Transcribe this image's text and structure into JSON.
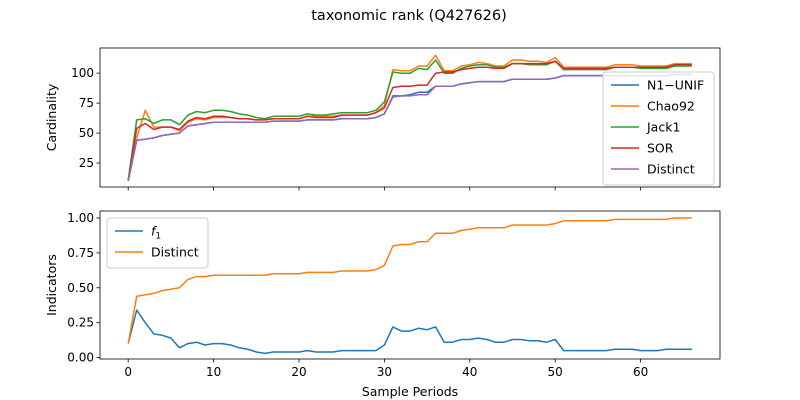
{
  "figure": {
    "title": "taxonomic rank (Q427626)"
  },
  "colors": {
    "blue": "#1f77b4",
    "orange": "#ff7f0e",
    "green": "#2ca02c",
    "red": "#d62728",
    "purple": "#9467bd"
  },
  "chart_data": [
    {
      "type": "line",
      "ylabel": "Cardinality",
      "xlim": [
        -3.3,
        69.3
      ],
      "ylim": [
        5,
        121
      ],
      "yticks": [
        25,
        50,
        75,
        100
      ],
      "xticks": [
        0,
        10,
        20,
        30,
        40,
        50,
        60
      ],
      "x_ticklabels_shown": false,
      "grid": false,
      "legend": "right",
      "x": [
        0,
        1,
        2,
        3,
        4,
        5,
        6,
        7,
        8,
        9,
        10,
        11,
        12,
        13,
        14,
        15,
        16,
        17,
        18,
        19,
        20,
        21,
        22,
        23,
        24,
        25,
        26,
        27,
        28,
        29,
        30,
        31,
        32,
        33,
        34,
        35,
        36,
        37,
        38,
        39,
        40,
        41,
        42,
        43,
        44,
        45,
        46,
        47,
        48,
        49,
        50,
        51,
        52,
        53,
        54,
        55,
        56,
        57,
        58,
        59,
        60,
        61,
        62,
        63,
        64,
        65,
        66
      ],
      "series": [
        {
          "name": "N1−UNIF",
          "color": "#1f77b4",
          "values": [
            10,
            44,
            45,
            46,
            48,
            49,
            50,
            56,
            57,
            58,
            59,
            59,
            59,
            59,
            59,
            59,
            59,
            60,
            60,
            60,
            60,
            61,
            61,
            61,
            61,
            62,
            62,
            62,
            62,
            63,
            66,
            81,
            81,
            82,
            84,
            84,
            89,
            89,
            89,
            91,
            92,
            93,
            93,
            93,
            93,
            95,
            95,
            95,
            95,
            95,
            96,
            98,
            98,
            98,
            98,
            98,
            98,
            98,
            98,
            98,
            98,
            98,
            98,
            98,
            99,
            99,
            99
          ]
        },
        {
          "name": "Chao92",
          "color": "#ff7f0e",
          "values": [
            10,
            46,
            69,
            55,
            55,
            55,
            52,
            59,
            62,
            61,
            63,
            63,
            63,
            62,
            62,
            61,
            61,
            62,
            62,
            62,
            62,
            64,
            64,
            64,
            64,
            65,
            65,
            65,
            65,
            67,
            73,
            103,
            102,
            102,
            106,
            106,
            115,
            102,
            102,
            106,
            107,
            109,
            108,
            106,
            106,
            111,
            111,
            110,
            110,
            109,
            113,
            105,
            105,
            105,
            105,
            105,
            105,
            107,
            107,
            107,
            106,
            106,
            106,
            106,
            108,
            108,
            108
          ]
        },
        {
          "name": "Jack1",
          "color": "#2ca02c",
          "values": [
            11,
            61,
            62,
            58,
            61,
            61,
            57,
            65,
            68,
            67,
            69,
            69,
            68,
            66,
            65,
            63,
            62,
            64,
            64,
            64,
            64,
            66,
            65,
            65,
            66,
            67,
            67,
            67,
            67,
            69,
            76,
            101,
            100,
            100,
            104,
            103,
            111,
            100,
            100,
            104,
            106,
            107,
            107,
            105,
            105,
            108,
            108,
            107,
            107,
            107,
            110,
            103,
            103,
            103,
            103,
            103,
            103,
            105,
            105,
            105,
            104,
            104,
            104,
            104,
            106,
            106,
            106
          ]
        },
        {
          "name": "SOR",
          "color": "#d62728",
          "values": [
            10,
            54,
            58,
            53,
            55,
            55,
            53,
            60,
            63,
            62,
            64,
            64,
            63,
            62,
            62,
            61,
            61,
            62,
            62,
            62,
            62,
            64,
            63,
            63,
            63,
            65,
            65,
            65,
            65,
            67,
            71,
            88,
            89,
            89,
            90,
            90,
            100,
            101,
            101,
            103,
            104,
            105,
            105,
            104,
            104,
            108,
            108,
            108,
            108,
            108,
            110,
            104,
            104,
            104,
            104,
            104,
            104,
            105,
            105,
            105,
            105,
            105,
            105,
            105,
            107,
            107,
            107
          ]
        },
        {
          "name": "Distinct",
          "color": "#9467bd",
          "values": [
            10,
            44,
            45,
            46,
            48,
            49,
            50,
            56,
            57,
            58,
            59,
            59,
            59,
            59,
            59,
            59,
            59,
            60,
            60,
            60,
            60,
            61,
            61,
            61,
            61,
            62,
            62,
            62,
            62,
            63,
            66,
            80,
            81,
            81,
            82,
            82,
            89,
            89,
            89,
            91,
            92,
            93,
            93,
            93,
            93,
            95,
            95,
            95,
            95,
            95,
            96,
            98,
            98,
            98,
            98,
            98,
            98,
            98,
            98,
            98,
            98,
            98,
            98,
            98,
            99,
            99,
            99
          ]
        }
      ]
    },
    {
      "type": "line",
      "xlabel": "Sample Periods",
      "ylabel": "Indicators",
      "xlim": [
        -3.3,
        69.3
      ],
      "ylim": [
        -0.01,
        1.05
      ],
      "yticks": [
        0.0,
        0.25,
        0.5,
        0.75,
        1.0
      ],
      "ytick_labels": [
        "0.00",
        "0.25",
        "0.50",
        "0.75",
        "1.00"
      ],
      "xticks": [
        0,
        10,
        20,
        30,
        40,
        50,
        60
      ],
      "xtick_labels": [
        "0",
        "10",
        "20",
        "30",
        "40",
        "50",
        "60"
      ],
      "grid": false,
      "legend": "top-left",
      "x": [
        0,
        1,
        2,
        3,
        4,
        5,
        6,
        7,
        8,
        9,
        10,
        11,
        12,
        13,
        14,
        15,
        16,
        17,
        18,
        19,
        20,
        21,
        22,
        23,
        24,
        25,
        26,
        27,
        28,
        29,
        30,
        31,
        32,
        33,
        34,
        35,
        36,
        37,
        38,
        39,
        40,
        41,
        42,
        43,
        44,
        45,
        46,
        47,
        48,
        49,
        50,
        51,
        52,
        53,
        54,
        55,
        56,
        57,
        58,
        59,
        60,
        61,
        62,
        63,
        64,
        65,
        66
      ],
      "series": [
        {
          "name": "f",
          "name_subscript": "1",
          "color": "#1f77b4",
          "values": [
            0.1,
            0.34,
            0.25,
            0.17,
            0.16,
            0.14,
            0.07,
            0.1,
            0.11,
            0.09,
            0.1,
            0.1,
            0.09,
            0.07,
            0.06,
            0.04,
            0.03,
            0.04,
            0.04,
            0.04,
            0.04,
            0.05,
            0.04,
            0.04,
            0.04,
            0.05,
            0.05,
            0.05,
            0.05,
            0.05,
            0.09,
            0.22,
            0.19,
            0.19,
            0.21,
            0.2,
            0.22,
            0.11,
            0.11,
            0.13,
            0.13,
            0.14,
            0.13,
            0.11,
            0.11,
            0.13,
            0.13,
            0.12,
            0.12,
            0.11,
            0.13,
            0.05,
            0.05,
            0.05,
            0.05,
            0.05,
            0.05,
            0.06,
            0.06,
            0.06,
            0.05,
            0.05,
            0.05,
            0.06,
            0.06,
            0.06,
            0.06
          ]
        },
        {
          "name": "Distinct",
          "color": "#ff7f0e",
          "values": [
            0.1,
            0.44,
            0.45,
            0.46,
            0.48,
            0.49,
            0.5,
            0.56,
            0.58,
            0.58,
            0.59,
            0.59,
            0.59,
            0.59,
            0.59,
            0.59,
            0.59,
            0.6,
            0.6,
            0.6,
            0.6,
            0.61,
            0.61,
            0.61,
            0.61,
            0.62,
            0.62,
            0.62,
            0.62,
            0.63,
            0.66,
            0.8,
            0.81,
            0.81,
            0.83,
            0.83,
            0.89,
            0.89,
            0.89,
            0.91,
            0.92,
            0.93,
            0.93,
            0.93,
            0.93,
            0.95,
            0.95,
            0.95,
            0.95,
            0.95,
            0.96,
            0.98,
            0.98,
            0.98,
            0.98,
            0.98,
            0.98,
            0.99,
            0.99,
            0.99,
            0.99,
            0.99,
            0.99,
            0.99,
            1.0,
            1.0,
            1.0
          ]
        }
      ]
    }
  ]
}
